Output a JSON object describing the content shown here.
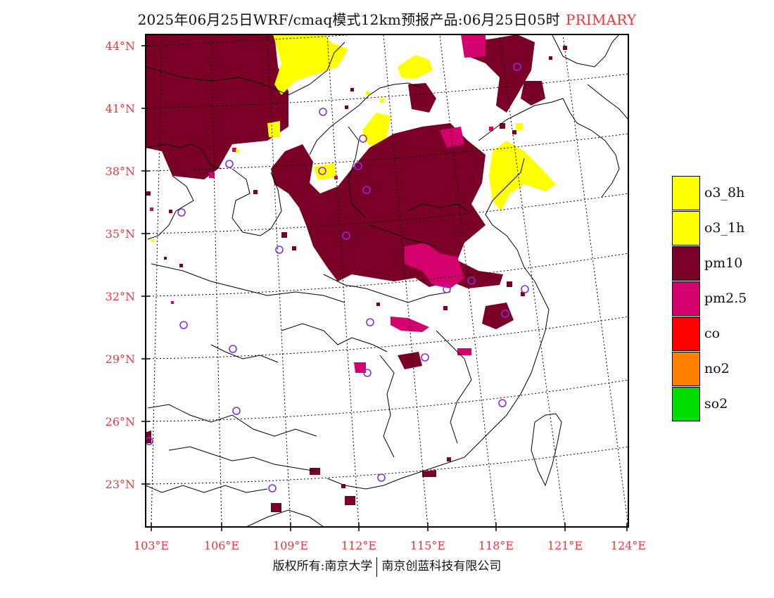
{
  "title": {
    "main": "2025年06月25日WRF/cmaq模式12km预报产品:06月25日05时",
    "tag": "PRIMARY"
  },
  "lat_labels": [
    "44°N",
    "41°N",
    "38°N",
    "35°N",
    "32°N",
    "29°N",
    "26°N",
    "23°N"
  ],
  "lon_labels": [
    "103°E",
    "106°E",
    "109°E",
    "112°E",
    "115°E",
    "118°E",
    "121°E",
    "124°E"
  ],
  "legend": [
    {
      "label": "o3_8h",
      "color": "#ffff00"
    },
    {
      "label": "o3_1h",
      "color": "#ffff00"
    },
    {
      "label": "pm10",
      "color": "#7a0027"
    },
    {
      "label": "pm2.5",
      "color": "#d4006e"
    },
    {
      "label": "co",
      "color": "#ff0000"
    },
    {
      "label": "no2",
      "color": "#ff8000"
    },
    {
      "label": "so2",
      "color": "#00dd00"
    }
  ],
  "footer": {
    "left": "版权所有:南京大学",
    "right": "南京创蓝科技有限公司"
  },
  "colors": {
    "label_red": "#e8383d",
    "pm10": "#7a0027",
    "pm25": "#d4006e",
    "o3": "#ffff00",
    "station": "#8a2be2"
  }
}
